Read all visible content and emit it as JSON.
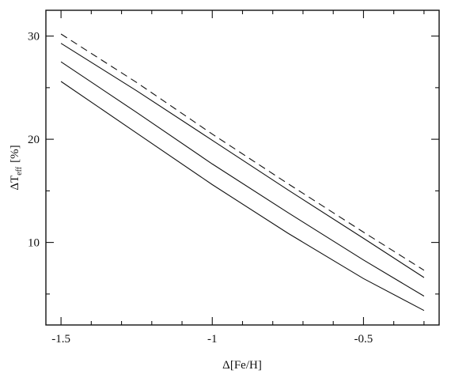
{
  "chart_data": {
    "type": "line",
    "title": "",
    "xlabel": "Δ[Fe/H]",
    "ylabel": {
      "main": "ΔT",
      "sub": "eff",
      "unit": "[%]"
    },
    "xlim": [
      -1.55,
      -0.25
    ],
    "ylim": [
      2,
      32.5
    ],
    "x_ticks": [
      -1.5,
      -1,
      -0.5
    ],
    "x_tick_labels": [
      "-1.5",
      "-1",
      "-0.5"
    ],
    "y_ticks": [
      10,
      20,
      30
    ],
    "y_tick_labels": [
      "10",
      "20",
      "30"
    ],
    "grid": false,
    "legend": "none",
    "series": [
      {
        "style": "dashed",
        "x": [
          -1.5,
          -1.25,
          -1.0,
          -0.75,
          -0.5,
          -0.3
        ],
        "y": [
          30.2,
          25.5,
          20.5,
          15.7,
          11.0,
          7.3
        ]
      },
      {
        "style": "solid",
        "x": [
          -1.5,
          -1.25,
          -1.0,
          -0.75,
          -0.5,
          -0.3
        ],
        "y": [
          29.3,
          24.7,
          19.9,
          15.1,
          10.4,
          6.6
        ]
      },
      {
        "style": "solid",
        "x": [
          -1.5,
          -1.25,
          -1.0,
          -0.75,
          -0.5,
          -0.3
        ],
        "y": [
          27.5,
          22.6,
          17.6,
          12.9,
          8.3,
          4.8
        ]
      },
      {
        "style": "solid",
        "x": [
          -1.5,
          -1.25,
          -1.0,
          -0.75,
          -0.5,
          -0.3
        ],
        "y": [
          25.6,
          20.6,
          15.6,
          10.9,
          6.5,
          3.4
        ]
      }
    ]
  }
}
